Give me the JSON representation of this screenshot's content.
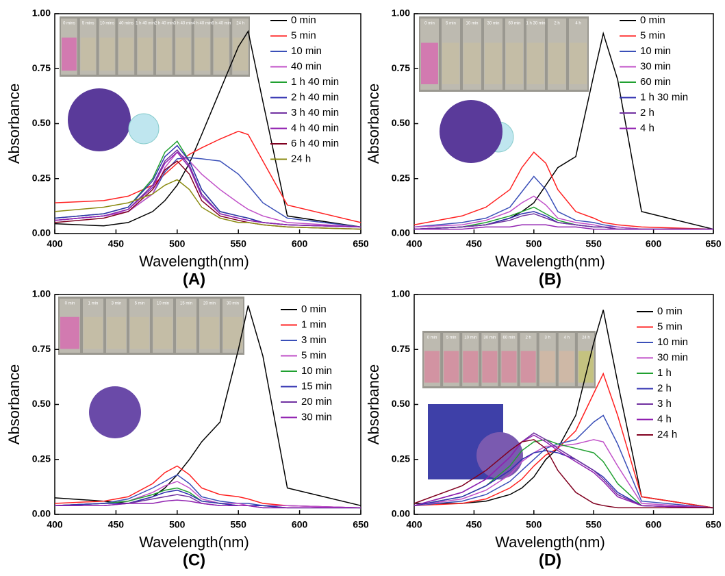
{
  "chart_data": [
    {
      "type": "line",
      "panel_label": "(A)",
      "xlabel": "Wavelength(nm)",
      "ylabel": "Absorbance",
      "xlim": [
        400,
        650
      ],
      "ylim": [
        0,
        1
      ],
      "xticks": [
        400,
        450,
        500,
        550,
        600,
        650
      ],
      "yticks": [
        {
          "value": 0,
          "label": "0.00"
        },
        0.25,
        {
          "value": 0.5,
          "label": "0.50"
        },
        0.75,
        {
          "value": 1,
          "label": "1.00"
        }
      ],
      "photo_labels": [
        "0 mins",
        "5 mins",
        "10 mins",
        "40 mins",
        "1 h 40 min",
        "2 h 40 min",
        "3 h 40 min",
        "4 h 40 min",
        "6 h 40 min",
        "24 h"
      ],
      "x": [
        400,
        440,
        460,
        480,
        490,
        500,
        510,
        520,
        535,
        550,
        558,
        570,
        590,
        650
      ],
      "series": [
        {
          "name": "0 min",
          "color": "#000000",
          "values": [
            0.045,
            0.035,
            0.05,
            0.1,
            0.15,
            0.22,
            0.32,
            0.45,
            0.65,
            0.85,
            0.92,
            0.6,
            0.08,
            0.03
          ]
        },
        {
          "name": "5 min",
          "color": "#ff2020",
          "values": [
            0.14,
            0.15,
            0.17,
            0.22,
            0.27,
            0.32,
            0.36,
            0.39,
            0.43,
            0.465,
            0.45,
            0.33,
            0.13,
            0.05
          ]
        },
        {
          "name": "10 min",
          "color": "#3a4fb8",
          "values": [
            0.06,
            0.08,
            0.1,
            0.18,
            0.28,
            0.34,
            0.345,
            0.34,
            0.33,
            0.27,
            0.22,
            0.14,
            0.07,
            0.03
          ]
        },
        {
          "name": "40 min",
          "color": "#c050c8",
          "values": [
            0.06,
            0.08,
            0.1,
            0.18,
            0.3,
            0.37,
            0.33,
            0.27,
            0.2,
            0.14,
            0.11,
            0.08,
            0.05,
            0.03
          ]
        },
        {
          "name": "1 h 40 min",
          "color": "#20a030",
          "values": [
            0.07,
            0.09,
            0.12,
            0.25,
            0.37,
            0.42,
            0.33,
            0.2,
            0.1,
            0.08,
            0.07,
            0.05,
            0.04,
            0.03
          ]
        },
        {
          "name": "2 h 40 min",
          "color": "#3030b0",
          "values": [
            0.07,
            0.09,
            0.12,
            0.24,
            0.35,
            0.4,
            0.33,
            0.2,
            0.1,
            0.08,
            0.07,
            0.05,
            0.04,
            0.03
          ]
        },
        {
          "name": "3 h 40 min",
          "color": "#7030a0",
          "values": [
            0.06,
            0.08,
            0.11,
            0.22,
            0.33,
            0.38,
            0.31,
            0.18,
            0.09,
            0.07,
            0.06,
            0.05,
            0.04,
            0.03
          ]
        },
        {
          "name": "4 h 40 min",
          "color": "#9020b0",
          "values": [
            0.06,
            0.08,
            0.11,
            0.21,
            0.32,
            0.37,
            0.3,
            0.17,
            0.09,
            0.07,
            0.06,
            0.05,
            0.04,
            0.03
          ]
        },
        {
          "name": "6 h 40 min",
          "color": "#800020",
          "values": [
            0.05,
            0.07,
            0.1,
            0.2,
            0.29,
            0.33,
            0.27,
            0.15,
            0.08,
            0.06,
            0.05,
            0.04,
            0.03,
            0.02
          ]
        },
        {
          "name": "24 h",
          "color": "#8a8a10",
          "values": [
            0.1,
            0.12,
            0.14,
            0.18,
            0.22,
            0.245,
            0.2,
            0.12,
            0.07,
            0.05,
            0.05,
            0.04,
            0.03,
            0.02
          ]
        }
      ]
    },
    {
      "type": "line",
      "panel_label": "(B)",
      "xlabel": "Wavelength(nm)",
      "ylabel": "Absorbance",
      "xlim": [
        400,
        650
      ],
      "ylim": [
        0,
        1
      ],
      "xticks": [
        400,
        450,
        500,
        550,
        600,
        650
      ],
      "yticks": [
        {
          "value": 0,
          "label": "0.00"
        },
        0.25,
        {
          "value": 0.5,
          "label": "0.50"
        },
        0.75,
        {
          "value": 1,
          "label": "1.00"
        }
      ],
      "photo_labels": [
        "0 min",
        "5 min",
        "10 min",
        "30 min",
        "60 min",
        "1 h 30 min",
        "2 h",
        "4 h"
      ],
      "x": [
        400,
        440,
        460,
        480,
        490,
        500,
        510,
        520,
        535,
        550,
        558,
        570,
        590,
        650
      ],
      "series": [
        {
          "name": "0 min",
          "color": "#000000",
          "values": [
            0.02,
            0.03,
            0.04,
            0.07,
            0.1,
            0.14,
            0.22,
            0.3,
            0.35,
            0.72,
            0.91,
            0.7,
            0.1,
            0.02
          ]
        },
        {
          "name": "5 min",
          "color": "#ff2020",
          "values": [
            0.04,
            0.08,
            0.12,
            0.2,
            0.3,
            0.37,
            0.32,
            0.2,
            0.1,
            0.07,
            0.05,
            0.04,
            0.03,
            0.02
          ]
        },
        {
          "name": "10 min",
          "color": "#3a4fb8",
          "values": [
            0.03,
            0.05,
            0.07,
            0.12,
            0.19,
            0.26,
            0.2,
            0.1,
            0.06,
            0.05,
            0.04,
            0.03,
            0.02,
            0.02
          ]
        },
        {
          "name": "30 min",
          "color": "#c050c8",
          "values": [
            0.03,
            0.04,
            0.06,
            0.1,
            0.14,
            0.17,
            0.13,
            0.07,
            0.05,
            0.04,
            0.03,
            0.03,
            0.02,
            0.02
          ]
        },
        {
          "name": "60 min",
          "color": "#20a030",
          "values": [
            0.02,
            0.03,
            0.05,
            0.08,
            0.1,
            0.12,
            0.09,
            0.06,
            0.04,
            0.03,
            0.03,
            0.02,
            0.02,
            0.02
          ]
        },
        {
          "name": "1 h 30 min",
          "color": "#3030b0",
          "values": [
            0.02,
            0.03,
            0.04,
            0.07,
            0.09,
            0.1,
            0.08,
            0.05,
            0.04,
            0.03,
            0.03,
            0.02,
            0.02,
            0.02
          ]
        },
        {
          "name": "2 h",
          "color": "#7030a0",
          "values": [
            0.02,
            0.03,
            0.04,
            0.06,
            0.08,
            0.09,
            0.07,
            0.05,
            0.04,
            0.03,
            0.03,
            0.02,
            0.02,
            0.02
          ]
        },
        {
          "name": "4 h",
          "color": "#9020b0",
          "values": [
            0.02,
            0.02,
            0.03,
            0.03,
            0.04,
            0.04,
            0.04,
            0.03,
            0.03,
            0.02,
            0.02,
            0.02,
            0.02,
            0.02
          ]
        }
      ]
    },
    {
      "type": "line",
      "panel_label": "(C)",
      "xlabel": "Wavelength(nm)",
      "ylabel": "Absorbance",
      "xlim": [
        400,
        650
      ],
      "ylim": [
        0,
        1
      ],
      "xticks": [
        400,
        450,
        500,
        550,
        600,
        650
      ],
      "yticks": [
        {
          "value": 0,
          "label": "0.00"
        },
        0.25,
        {
          "value": 0.5,
          "label": "0.50"
        },
        0.75,
        {
          "value": 1,
          "label": "1.00"
        }
      ],
      "photo_labels": [
        "0 min",
        "1 min",
        "3 min",
        "5 min",
        "10 min",
        "15 min",
        "20 min",
        "30 min"
      ],
      "x": [
        400,
        440,
        460,
        480,
        490,
        500,
        510,
        520,
        535,
        550,
        558,
        570,
        590,
        650
      ],
      "series": [
        {
          "name": "0 min",
          "color": "#000000",
          "values": [
            0.075,
            0.06,
            0.05,
            0.08,
            0.12,
            0.18,
            0.25,
            0.33,
            0.42,
            0.75,
            0.95,
            0.72,
            0.12,
            0.04
          ]
        },
        {
          "name": "1 min",
          "color": "#ff2020",
          "values": [
            0.05,
            0.06,
            0.08,
            0.14,
            0.19,
            0.22,
            0.18,
            0.12,
            0.09,
            0.08,
            0.07,
            0.05,
            0.04,
            0.03
          ]
        },
        {
          "name": "3 min",
          "color": "#3a4fb8",
          "values": [
            0.04,
            0.05,
            0.07,
            0.12,
            0.15,
            0.18,
            0.14,
            0.08,
            0.06,
            0.05,
            0.05,
            0.04,
            0.04,
            0.03
          ]
        },
        {
          "name": "5 min",
          "color": "#c050c8",
          "values": [
            0.04,
            0.05,
            0.06,
            0.1,
            0.13,
            0.15,
            0.12,
            0.07,
            0.05,
            0.05,
            0.04,
            0.04,
            0.04,
            0.03
          ]
        },
        {
          "name": "10 min",
          "color": "#20a030",
          "values": [
            0.04,
            0.05,
            0.06,
            0.09,
            0.11,
            0.12,
            0.1,
            0.06,
            0.05,
            0.04,
            0.04,
            0.04,
            0.03,
            0.03
          ]
        },
        {
          "name": "15 min",
          "color": "#3030b0",
          "values": [
            0.04,
            0.05,
            0.05,
            0.08,
            0.1,
            0.11,
            0.09,
            0.06,
            0.05,
            0.04,
            0.04,
            0.04,
            0.03,
            0.03
          ]
        },
        {
          "name": "20 min",
          "color": "#7030a0",
          "values": [
            0.04,
            0.04,
            0.05,
            0.07,
            0.08,
            0.09,
            0.08,
            0.05,
            0.04,
            0.04,
            0.04,
            0.03,
            0.03,
            0.03
          ]
        },
        {
          "name": "30 min",
          "color": "#9020b0",
          "values": [
            0.04,
            0.04,
            0.05,
            0.05,
            0.06,
            0.065,
            0.06,
            0.05,
            0.04,
            0.04,
            0.04,
            0.03,
            0.03,
            0.03
          ]
        }
      ]
    },
    {
      "type": "line",
      "panel_label": "(D)",
      "xlabel": "Wavelength(nm)",
      "ylabel": "Absorbance",
      "xlim": [
        400,
        650
      ],
      "ylim": [
        0,
        1
      ],
      "xticks": [
        400,
        450,
        500,
        550,
        600,
        650
      ],
      "yticks": [
        {
          "value": 0,
          "label": "0.00"
        },
        0.25,
        {
          "value": 0.5,
          "label": "0.50"
        },
        0.75,
        {
          "value": 1,
          "label": "1.00"
        }
      ],
      "photo_labels": [
        "0 min",
        "5 min",
        "10 min",
        "30 min",
        "60 min",
        "2 h",
        "3 h",
        "4 h",
        "24 h"
      ],
      "x": [
        400,
        440,
        460,
        480,
        490,
        500,
        510,
        520,
        535,
        550,
        558,
        570,
        590,
        650
      ],
      "series": [
        {
          "name": "0 min",
          "color": "#000000",
          "values": [
            0.05,
            0.05,
            0.06,
            0.09,
            0.12,
            0.17,
            0.25,
            0.3,
            0.45,
            0.78,
            0.93,
            0.6,
            0.08,
            0.03
          ]
        },
        {
          "name": "5 min",
          "color": "#ff2020",
          "values": [
            0.04,
            0.05,
            0.07,
            0.12,
            0.16,
            0.22,
            0.27,
            0.3,
            0.38,
            0.55,
            0.64,
            0.45,
            0.08,
            0.03
          ]
        },
        {
          "name": "10 min",
          "color": "#3a4fb8",
          "values": [
            0.04,
            0.06,
            0.09,
            0.15,
            0.2,
            0.25,
            0.3,
            0.32,
            0.34,
            0.42,
            0.45,
            0.32,
            0.06,
            0.03
          ]
        },
        {
          "name": "30 min",
          "color": "#c050c8",
          "values": [
            0.04,
            0.07,
            0.11,
            0.18,
            0.24,
            0.28,
            0.31,
            0.31,
            0.32,
            0.34,
            0.33,
            0.22,
            0.05,
            0.03
          ]
        },
        {
          "name": "1 h",
          "color": "#20a030",
          "values": [
            0.04,
            0.08,
            0.13,
            0.22,
            0.29,
            0.33,
            0.34,
            0.32,
            0.3,
            0.28,
            0.24,
            0.14,
            0.04,
            0.03
          ]
        },
        {
          "name": "2 h",
          "color": "#3030b0",
          "values": [
            0.04,
            0.08,
            0.13,
            0.2,
            0.25,
            0.28,
            0.29,
            0.28,
            0.25,
            0.2,
            0.17,
            0.1,
            0.04,
            0.03
          ]
        },
        {
          "name": "3 h",
          "color": "#7030a0",
          "values": [
            0.04,
            0.1,
            0.16,
            0.26,
            0.33,
            0.37,
            0.34,
            0.3,
            0.25,
            0.2,
            0.16,
            0.09,
            0.04,
            0.03
          ]
        },
        {
          "name": "4 h",
          "color": "#9020b0",
          "values": [
            0.04,
            0.1,
            0.16,
            0.26,
            0.33,
            0.36,
            0.33,
            0.29,
            0.24,
            0.19,
            0.15,
            0.08,
            0.04,
            0.03
          ]
        },
        {
          "name": "24 h",
          "color": "#800020",
          "values": [
            0.05,
            0.13,
            0.2,
            0.29,
            0.33,
            0.34,
            0.3,
            0.2,
            0.1,
            0.05,
            0.04,
            0.03,
            0.03,
            0.03
          ]
        }
      ]
    }
  ]
}
